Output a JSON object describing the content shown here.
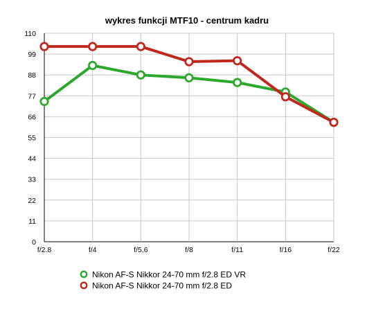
{
  "chart_data": {
    "type": "line",
    "title": "wykres funkcji MTF10 - centrum kadru",
    "xlabel": "",
    "ylabel": "",
    "categories": [
      "f/2.8",
      "f/4",
      "f/5,6",
      "f/8",
      "f/11",
      "f/16",
      "f/22"
    ],
    "ylim": [
      0,
      110
    ],
    "yticks": [
      0,
      11,
      22,
      33,
      44,
      55,
      66,
      77,
      88,
      99,
      110
    ],
    "grid": true,
    "legend_position": "bottom",
    "series": [
      {
        "name": "Nikon AF-S Nikkor 24-70 mm f/2.8 ED VR",
        "color": "#2ca82c",
        "values": [
          74,
          93,
          88,
          86.5,
          84,
          79,
          63
        ]
      },
      {
        "name": "Nikon AF-S Nikkor 24-70 mm f/2.8 ED",
        "color": "#c0281e",
        "values": [
          103,
          103,
          103,
          95,
          95.5,
          76.5,
          63
        ]
      }
    ]
  }
}
